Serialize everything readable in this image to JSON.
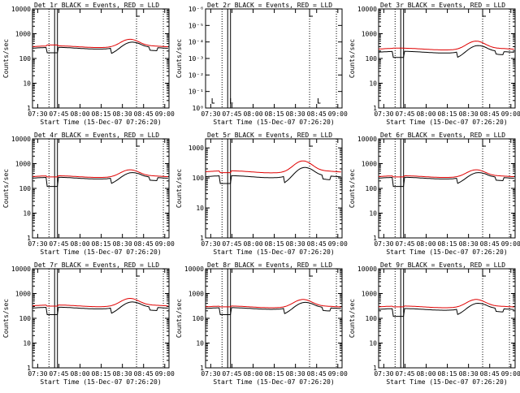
{
  "figure": {
    "xlabel": "Start Time (15-Dec-07 07:26:20)",
    "ylabel": "Counts/sec",
    "x_tick_labels": [
      "07:30",
      "07:45",
      "08:00",
      "08:15",
      "08:30",
      "08:45",
      "09:00"
    ],
    "colors": {
      "events": "#000000",
      "lld": "#e00000",
      "frame": "#000000"
    }
  },
  "chart_data": [
    {
      "type": "line",
      "title": "Det 1r BLACK = Events, RED = LLD",
      "yscale": "log",
      "ytick_labels": [
        "1",
        "10",
        "100",
        "1000",
        "10000"
      ],
      "ylim": [
        1,
        10000
      ],
      "events_level": 260,
      "lld_level": 300,
      "bump": 1.9,
      "gap_events": 170,
      "gap_lld": 350
    },
    {
      "type": "line",
      "title": "Det 2r BLACK = Events, RED = LLD",
      "yscale": "log",
      "ytick_labels": [
        "10⁰",
        "10⁻¹",
        "10⁻²",
        "10⁻³",
        "10⁻⁴",
        "10⁻⁵",
        "10⁻⁶"
      ],
      "ylim": [
        1e-06,
        1
      ],
      "events_level": null,
      "lld_level": null,
      "bump": 1,
      "gap_events": null,
      "gap_lld": null
    },
    {
      "type": "line",
      "title": "Det 3r BLACK = Events, RED = LLD",
      "yscale": "log",
      "ytick_labels": [
        "1",
        "10",
        "100",
        "1000",
        "10000"
      ],
      "ylim": [
        1,
        10000
      ],
      "events_level": 180,
      "lld_level": 240,
      "bump": 2.0,
      "gap_events": 110,
      "gap_lld": 260
    },
    {
      "type": "line",
      "title": "Det 4r BLACK = Events, RED = LLD",
      "yscale": "log",
      "ytick_labels": [
        "1",
        "10",
        "100",
        "1000",
        "10000"
      ],
      "ylim": [
        1,
        10000
      ],
      "events_level": 260,
      "lld_level": 300,
      "bump": 1.8,
      "gap_events": 120,
      "gap_lld": 290
    },
    {
      "type": "line",
      "title": "Det 5r BLACK = Events, RED = LLD",
      "yscale": "log",
      "ytick_labels": [
        "1",
        "10",
        "100",
        "1000"
      ],
      "ylim": [
        1,
        2000
      ],
      "events_level": 110,
      "lld_level": 160,
      "bump": 2.2,
      "gap_events": 65,
      "gap_lld": 150
    },
    {
      "type": "line",
      "title": "Det 6r BLACK = Events, RED = LLD",
      "yscale": "log",
      "ytick_labels": [
        "1",
        "10",
        "100",
        "1000",
        "10000"
      ],
      "ylim": [
        1,
        10000
      ],
      "events_level": 260,
      "lld_level": 300,
      "bump": 1.8,
      "gap_events": 120,
      "gap_lld": 290
    },
    {
      "type": "line",
      "title": "Det 7r BLACK = Events, RED = LLD",
      "yscale": "log",
      "ytick_labels": [
        "1",
        "10",
        "100",
        "1000",
        "10000"
      ],
      "ylim": [
        1,
        10000
      ],
      "events_level": 260,
      "lld_level": 320,
      "bump": 1.9,
      "gap_events": 140,
      "gap_lld": 310
    },
    {
      "type": "line",
      "title": "Det 8r BLACK = Events, RED = LLD",
      "yscale": "log",
      "ytick_labels": [
        "1",
        "10",
        "100",
        "1000",
        "10000"
      ],
      "ylim": [
        1,
        10000
      ],
      "events_level": 250,
      "lld_level": 290,
      "bump": 1.9,
      "gap_events": 140,
      "gap_lld": 290
    },
    {
      "type": "line",
      "title": "Det 9r BLACK = Events, RED = LLD",
      "yscale": "log",
      "ytick_labels": [
        "1",
        "10",
        "100",
        "1000",
        "10000"
      ],
      "ylim": [
        1,
        10000
      ],
      "events_level": 230,
      "lld_level": 290,
      "bump": 1.9,
      "gap_events": 120,
      "gap_lld": 290
    }
  ]
}
